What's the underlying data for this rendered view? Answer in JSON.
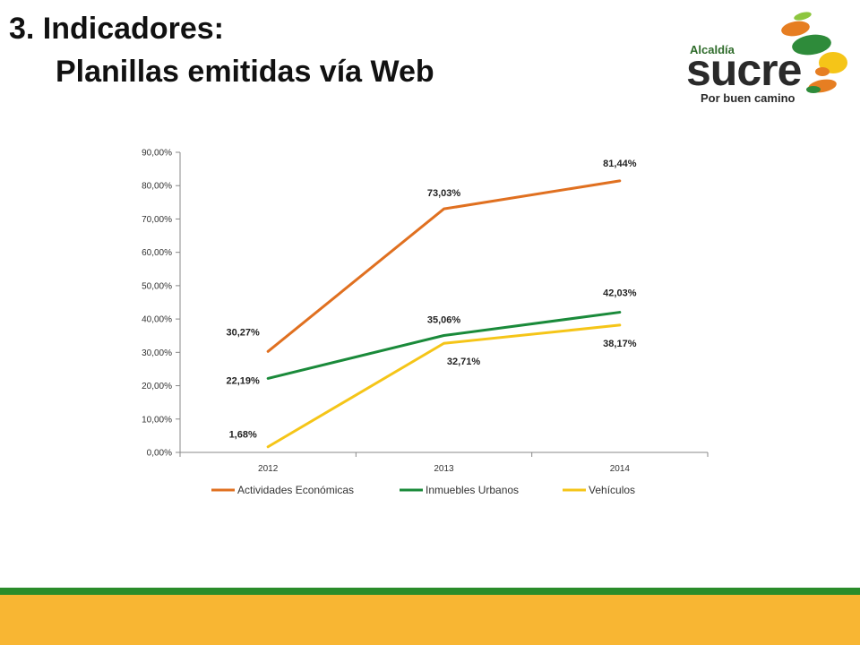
{
  "slide": {
    "title_line1": "3. Indicadores:",
    "title_line2": "Planillas emitidas vía Web"
  },
  "logo": {
    "small": "Alcaldía",
    "big": "sucre",
    "tagline": "Por buen camino"
  },
  "chart_data": {
    "type": "line",
    "categories": [
      "2012",
      "2013",
      "2014"
    ],
    "ylim": [
      0,
      90
    ],
    "yticks": [
      0,
      10,
      20,
      30,
      40,
      50,
      60,
      70,
      80,
      90
    ],
    "ytick_labels": [
      "0,00%",
      "10,00%",
      "20,00%",
      "30,00%",
      "40,00%",
      "50,00%",
      "60,00%",
      "70,00%",
      "80,00%",
      "90,00%"
    ],
    "legend_position": "bottom",
    "grid": false,
    "series": [
      {
        "name": "Actividades Económicas",
        "color": "#e07020",
        "values": [
          30.27,
          73.03,
          81.44
        ],
        "labels": [
          "30,27%",
          "73,03%",
          "81,44%"
        ]
      },
      {
        "name": "Inmuebles Urbanos",
        "color": "#1a8a3a",
        "values": [
          22.19,
          35.06,
          42.03
        ],
        "labels": [
          "22,19%",
          "35,06%",
          "42,03%"
        ]
      },
      {
        "name": "Vehículos",
        "color": "#f5c518",
        "values": [
          1.68,
          32.71,
          38.17
        ],
        "labels": [
          "1,68%",
          "32,71%",
          "38,17%"
        ]
      }
    ]
  },
  "colors": {
    "footer_green": "#2a8c2a",
    "footer_yellow": "#f8b633"
  }
}
